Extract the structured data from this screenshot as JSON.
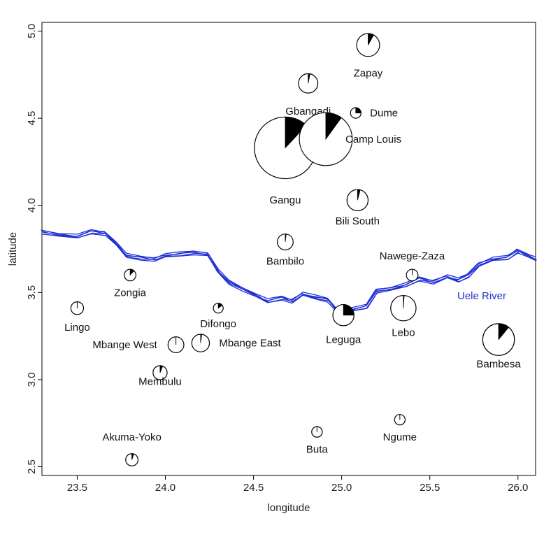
{
  "chart_data": {
    "type": "scatter",
    "subtype": "pie-chart map",
    "xlabel": "longitude",
    "ylabel": "latitude",
    "xlim": [
      23.3,
      26.1
    ],
    "ylim": [
      2.45,
      5.05
    ],
    "xticks": [
      23.5,
      24.0,
      24.5,
      25.0,
      25.5,
      26.0
    ],
    "xtick_labels": [
      "23.5",
      "24.0",
      "24.5",
      "25.0",
      "25.5",
      "26.0"
    ],
    "yticks": [
      2.5,
      3.0,
      3.5,
      4.0,
      4.5,
      5.0
    ],
    "ytick_labels": [
      "2.5",
      "3.0",
      "3.5",
      "4.0",
      "4.5",
      "5.0"
    ],
    "colors": {
      "river": "#1f2fd6",
      "slice": "#000000",
      "outline": "#000000"
    },
    "river_label": "Uele River",
    "river": [
      [
        23.3,
        3.85
      ],
      [
        23.4,
        3.83
      ],
      [
        23.5,
        3.82
      ],
      [
        23.58,
        3.85
      ],
      [
        23.66,
        3.84
      ],
      [
        23.72,
        3.78
      ],
      [
        23.78,
        3.71
      ],
      [
        23.86,
        3.7
      ],
      [
        23.94,
        3.69
      ],
      [
        24.0,
        3.71
      ],
      [
        24.08,
        3.72
      ],
      [
        24.16,
        3.73
      ],
      [
        24.24,
        3.72
      ],
      [
        24.3,
        3.62
      ],
      [
        24.36,
        3.56
      ],
      [
        24.44,
        3.52
      ],
      [
        24.52,
        3.48
      ],
      [
        24.58,
        3.45
      ],
      [
        24.66,
        3.47
      ],
      [
        24.72,
        3.45
      ],
      [
        24.78,
        3.49
      ],
      [
        24.86,
        3.47
      ],
      [
        24.92,
        3.46
      ],
      [
        24.98,
        3.39
      ],
      [
        25.06,
        3.4
      ],
      [
        25.14,
        3.42
      ],
      [
        25.2,
        3.51
      ],
      [
        25.28,
        3.52
      ],
      [
        25.36,
        3.54
      ],
      [
        25.44,
        3.58
      ],
      [
        25.52,
        3.56
      ],
      [
        25.6,
        3.59
      ],
      [
        25.66,
        3.57
      ],
      [
        25.72,
        3.6
      ],
      [
        25.78,
        3.66
      ],
      [
        25.86,
        3.69
      ],
      [
        25.94,
        3.7
      ],
      [
        26.0,
        3.74
      ],
      [
        26.06,
        3.71
      ],
      [
        26.1,
        3.69
      ]
    ],
    "sites": [
      {
        "name": "Zapay",
        "lon": 25.15,
        "lat": 4.92,
        "radius_deg": 0.065,
        "fraction": 0.08,
        "label_dx": 0.0,
        "label_dy": -0.16
      },
      {
        "name": "Gbangadi",
        "lon": 24.81,
        "lat": 4.7,
        "radius_deg": 0.055,
        "fraction": 0.03,
        "label_dx": 0.0,
        "label_dy": -0.16
      },
      {
        "name": "Dume",
        "lon": 25.08,
        "lat": 4.53,
        "radius_deg": 0.03,
        "fraction": 0.25,
        "label_dx": 0.16,
        "label_dy": 0.0
      },
      {
        "name": "Gangu",
        "lon": 24.68,
        "lat": 4.33,
        "radius_deg": 0.175,
        "fraction": 0.12,
        "label_dx": 0.0,
        "label_dy": -0.3
      },
      {
        "name": "Camp Louis",
        "lon": 24.91,
        "lat": 4.38,
        "radius_deg": 0.15,
        "fraction": 0.1,
        "label_dx": 0.27,
        "label_dy": 0.0
      },
      {
        "name": "Bili South",
        "lon": 25.09,
        "lat": 4.03,
        "radius_deg": 0.06,
        "fraction": 0.04,
        "label_dx": 0.0,
        "label_dy": -0.12
      },
      {
        "name": "Bambilo",
        "lon": 24.68,
        "lat": 3.79,
        "radius_deg": 0.045,
        "fraction": 0.02,
        "label_dx": 0.0,
        "label_dy": -0.11
      },
      {
        "name": "Nawege-Zaza",
        "lon": 25.4,
        "lat": 3.6,
        "radius_deg": 0.033,
        "fraction": 0.0,
        "label_dx": 0.0,
        "label_dy": 0.11
      },
      {
        "name": "Zongia",
        "lon": 23.8,
        "lat": 3.6,
        "radius_deg": 0.033,
        "fraction": 0.12,
        "label_dx": 0.0,
        "label_dy": -0.1
      },
      {
        "name": "Lingo",
        "lon": 23.5,
        "lat": 3.41,
        "radius_deg": 0.036,
        "fraction": 0.0,
        "label_dx": 0.0,
        "label_dy": -0.11
      },
      {
        "name": "Difongo",
        "lon": 24.3,
        "lat": 3.41,
        "radius_deg": 0.028,
        "fraction": 0.15,
        "label_dx": 0.0,
        "label_dy": -0.09
      },
      {
        "name": "Leguga",
        "lon": 25.01,
        "lat": 3.37,
        "radius_deg": 0.06,
        "fraction": 0.25,
        "label_dx": 0.0,
        "label_dy": -0.14
      },
      {
        "name": "Lebo",
        "lon": 25.35,
        "lat": 3.41,
        "radius_deg": 0.072,
        "fraction": 0.01,
        "label_dx": 0.0,
        "label_dy": -0.14
      },
      {
        "name": "Bambesa",
        "lon": 25.89,
        "lat": 3.23,
        "radius_deg": 0.09,
        "fraction": 0.11,
        "label_dx": 0.0,
        "label_dy": -0.14
      },
      {
        "name": "Mbange West",
        "lon": 24.06,
        "lat": 3.2,
        "radius_deg": 0.045,
        "fraction": 0.0,
        "label_dx": -0.29,
        "label_dy": 0.0
      },
      {
        "name": "Mbange East",
        "lon": 24.2,
        "lat": 3.21,
        "radius_deg": 0.05,
        "fraction": 0.02,
        "label_dx": 0.28,
        "label_dy": 0.0
      },
      {
        "name": "Membulu",
        "lon": 23.97,
        "lat": 3.04,
        "radius_deg": 0.04,
        "fraction": 0.06,
        "label_dx": 0.0,
        "label_dy": -0.05
      },
      {
        "name": "Ngume",
        "lon": 25.33,
        "lat": 2.77,
        "radius_deg": 0.03,
        "fraction": 0.0,
        "label_dx": 0.0,
        "label_dy": -0.1
      },
      {
        "name": "Buta",
        "lon": 24.86,
        "lat": 2.7,
        "radius_deg": 0.03,
        "fraction": 0.0,
        "label_dx": 0.0,
        "label_dy": -0.1
      },
      {
        "name": "Akuma-Yoko",
        "lon": 23.81,
        "lat": 2.54,
        "radius_deg": 0.035,
        "fraction": 0.05,
        "label_dx": 0.0,
        "label_dy": 0.13
      }
    ]
  }
}
